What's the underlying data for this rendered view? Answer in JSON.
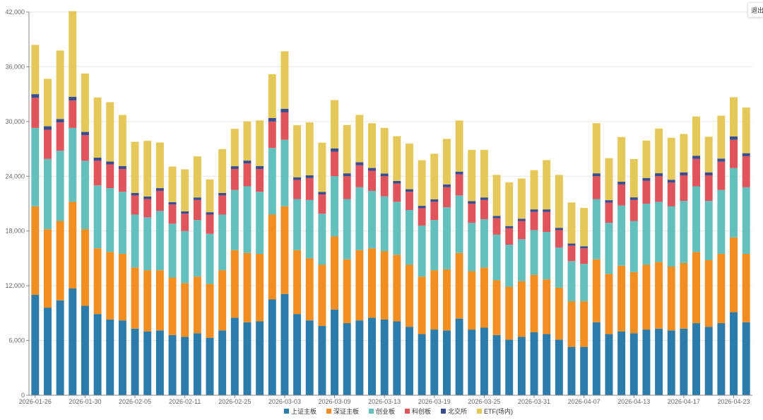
{
  "exit_button": {
    "label": "退出"
  },
  "chart_data": {
    "type": "bar",
    "stacked": true,
    "title": "",
    "xlabel": "",
    "ylabel": "",
    "ylim": [
      0,
      42000
    ],
    "y_ticks": [
      0,
      6000,
      12000,
      18000,
      24000,
      30000,
      36000,
      42000
    ],
    "y_tick_labels": [
      "0",
      "6,000",
      "12,000",
      "18,000",
      "24,000",
      "30,000",
      "36,000",
      "42,000"
    ],
    "grid": true,
    "legend_position": "bottom-center",
    "x_tick_labels": [
      "2026-01-26",
      "2026-01-30",
      "2026-02-05",
      "2026-02-11",
      "2026-02-25",
      "2026-03-03",
      "2026-03-09",
      "2026-03-13",
      "2026-03-19",
      "2026-03-25",
      "2026-03-31",
      "2026-04-07",
      "2026-04-13",
      "2026-04-17",
      "2026-04-23"
    ],
    "x_tick_every": 4,
    "series": [
      {
        "name": "上证主板",
        "color": "#2b7bab",
        "values": [
          11000,
          9600,
          10400,
          11700,
          9800,
          8900,
          8300,
          8200,
          7300,
          7000,
          7100,
          6600,
          6400,
          6800,
          6300,
          7100,
          8500,
          8000,
          8100,
          10500,
          11100,
          8900,
          8200,
          7600,
          9400,
          7900,
          8200,
          8500,
          8300,
          8100,
          7500,
          6700,
          7200,
          7100,
          8400,
          7200,
          7400,
          6600,
          6100,
          6400,
          6900,
          6700,
          6100,
          5300,
          5300,
          8000,
          6700,
          7000,
          6800,
          7200,
          7300,
          7100,
          7300,
          7900,
          7500,
          7900,
          9100,
          8000
        ]
      },
      {
        "name": "深证主板",
        "color": "#f28e22",
        "values": [
          9700,
          8600,
          8700,
          9500,
          8400,
          7200,
          7400,
          7300,
          6700,
          6700,
          6600,
          6300,
          5900,
          6200,
          5900,
          6600,
          7400,
          7600,
          7400,
          9300,
          9600,
          7000,
          6800,
          6700,
          8000,
          7000,
          7700,
          7600,
          7500,
          7300,
          6800,
          6300,
          6500,
          6700,
          7200,
          6400,
          6600,
          6000,
          5800,
          6100,
          6300,
          6000,
          5700,
          5000,
          5000,
          6900,
          6600,
          7200,
          6700,
          7100,
          7300,
          7000,
          7200,
          7800,
          7300,
          7600,
          8200,
          7500
        ]
      },
      {
        "name": "创业板",
        "color": "#64c0bd",
        "values": [
          8600,
          7700,
          7700,
          8100,
          7500,
          6900,
          7000,
          6800,
          5800,
          5800,
          6500,
          5900,
          5700,
          6200,
          5500,
          6100,
          6600,
          7300,
          6800,
          7300,
          7300,
          5600,
          6400,
          5600,
          6600,
          6600,
          6900,
          6300,
          6000,
          5800,
          6000,
          5600,
          5500,
          6800,
          6300,
          5300,
          5300,
          5000,
          4600,
          4600,
          4900,
          5200,
          4400,
          4400,
          4100,
          6600,
          5600,
          6600,
          5600,
          6700,
          6600,
          6600,
          6800,
          7200,
          6500,
          7000,
          7600,
          7300
        ]
      },
      {
        "name": "科创板",
        "color": "#e0555b",
        "values": [
          3300,
          3200,
          3100,
          3000,
          2800,
          2700,
          2600,
          2500,
          2100,
          2000,
          2200,
          2100,
          1900,
          2200,
          2100,
          2100,
          2300,
          2500,
          2500,
          2900,
          3000,
          2100,
          2400,
          2100,
          2700,
          2500,
          2400,
          2200,
          2200,
          2000,
          2000,
          1900,
          2000,
          2200,
          2300,
          2100,
          2100,
          1800,
          1800,
          2000,
          2000,
          2200,
          1900,
          1700,
          1700,
          2500,
          2200,
          2300,
          2300,
          2500,
          2800,
          2600,
          2800,
          3000,
          2800,
          3100,
          3100,
          3400
        ]
      },
      {
        "name": "北交所",
        "color": "#3a4d8f",
        "values": [
          400,
          380,
          380,
          400,
          360,
          340,
          320,
          320,
          280,
          280,
          300,
          270,
          260,
          280,
          260,
          270,
          300,
          320,
          320,
          380,
          400,
          290,
          300,
          280,
          350,
          320,
          330,
          310,
          300,
          290,
          280,
          260,
          270,
          300,
          310,
          280,
          280,
          250,
          240,
          250,
          270,
          270,
          250,
          230,
          230,
          320,
          280,
          300,
          290,
          310,
          330,
          320,
          330,
          350,
          330,
          340,
          360,
          330
        ]
      },
      {
        "name": "ETF(场内)",
        "color": "#e4c85a",
        "values": [
          5400,
          5200,
          7500,
          9400,
          6400,
          6600,
          6500,
          5600,
          5600,
          6100,
          5000,
          3900,
          4600,
          4500,
          3600,
          4800,
          4100,
          4300,
          5000,
          4800,
          6300,
          5700,
          5800,
          5400,
          5300,
          5300,
          5200,
          4900,
          5000,
          4900,
          5000,
          5000,
          5000,
          5000,
          5600,
          5600,
          5200,
          4500,
          4800,
          4400,
          4300,
          5400,
          5800,
          4500,
          4200,
          5500,
          4600,
          4900,
          4200,
          4100,
          4900,
          4600,
          4200,
          4300,
          3900,
          4700,
          4300,
          5000
        ]
      }
    ],
    "categories_count": 58
  }
}
